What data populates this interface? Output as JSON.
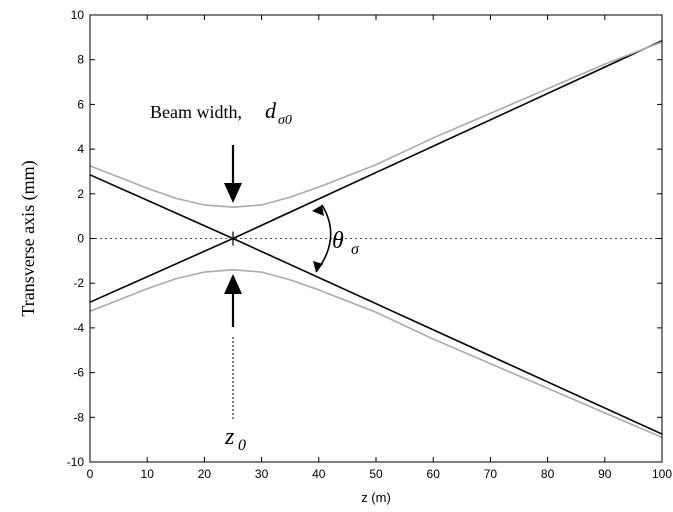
{
  "chart_data": {
    "type": "line",
    "xlabel": "z (m)",
    "ylabel": "Transverse axis (mm)",
    "xlim": [
      0,
      100
    ],
    "ylim": [
      -10,
      10
    ],
    "xticks": [
      0,
      10,
      20,
      30,
      40,
      50,
      60,
      70,
      80,
      90,
      100
    ],
    "yticks": [
      -10,
      -8,
      -6,
      -4,
      -2,
      0,
      2,
      4,
      6,
      8,
      10
    ],
    "grid": false,
    "series": [
      {
        "color": "#000000",
        "x": [
          0,
          25,
          100
        ],
        "y": [
          2.85,
          0,
          -8.75
        ]
      },
      {
        "color": "#000000",
        "x": [
          0,
          25,
          100
        ],
        "y": [
          -2.85,
          0,
          8.85
        ]
      },
      {
        "color": "#aaaaaa",
        "x": [
          0,
          5,
          10,
          15,
          20,
          25,
          30,
          35,
          40,
          45,
          50,
          60,
          70,
          80,
          90,
          100
        ],
        "y": [
          3.25,
          2.75,
          2.25,
          1.8,
          1.5,
          1.4,
          1.5,
          1.85,
          2.3,
          2.8,
          3.3,
          4.5,
          5.6,
          6.7,
          7.8,
          8.8
        ]
      },
      {
        "color": "#aaaaaa",
        "x": [
          0,
          5,
          10,
          15,
          20,
          25,
          30,
          35,
          40,
          45,
          50,
          60,
          70,
          80,
          90,
          100
        ],
        "y": [
          -3.25,
          -2.75,
          -2.25,
          -1.8,
          -1.5,
          -1.4,
          -1.5,
          -1.85,
          -2.3,
          -2.8,
          -3.3,
          -4.5,
          -5.6,
          -6.7,
          -7.8,
          -8.9
        ]
      },
      {
        "color": "#555555",
        "style": "dotted",
        "x": [
          0,
          100
        ],
        "y": [
          0,
          0
        ]
      }
    ],
    "annotations": {
      "beam_width_text": "Beam width,",
      "beam_width_symbol": "d",
      "beam_width_sub": "σ0",
      "theta_symbol": "θ",
      "theta_sub": "σ",
      "z0_symbol": "z",
      "z0_sub": "0"
    }
  }
}
